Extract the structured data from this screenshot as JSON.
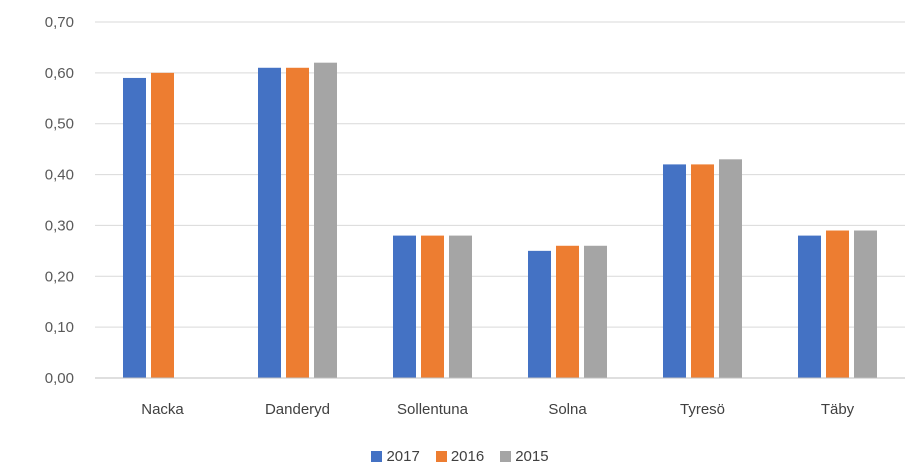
{
  "chart_data": {
    "type": "bar",
    "categories": [
      "Nacka",
      "Danderyd",
      "Sollentuna",
      "Solna",
      "Tyresö",
      "Täby"
    ],
    "series": [
      {
        "name": "2017",
        "color": "#4472C4",
        "values": [
          0.59,
          0.61,
          0.28,
          0.25,
          0.42,
          0.28
        ]
      },
      {
        "name": "2016",
        "color": "#ED7D31",
        "values": [
          0.6,
          0.61,
          0.28,
          0.26,
          0.42,
          0.29
        ]
      },
      {
        "name": "2015",
        "color": "#A5A5A5",
        "values": [
          null,
          0.62,
          0.28,
          0.26,
          0.43,
          0.29
        ]
      }
    ],
    "ylim": [
      0,
      0.7
    ],
    "yticks": [
      "0,00",
      "0,10",
      "0,20",
      "0,30",
      "0,40",
      "0,50",
      "0,60",
      "0,70"
    ],
    "grid": true,
    "legend": "bottom-center",
    "gridline_color": "#D9D9D9",
    "axis_color": "#BFBFBF"
  }
}
